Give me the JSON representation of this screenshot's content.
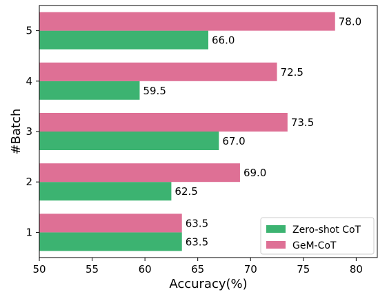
{
  "chart_data": {
    "type": "bar",
    "orientation": "horizontal",
    "categories": [
      "1",
      "2",
      "3",
      "4",
      "5"
    ],
    "series": [
      {
        "name": "Zero-shot CoT",
        "values": [
          63.5,
          62.5,
          67.0,
          59.5,
          66.0
        ],
        "labels": [
          "63.5",
          "62.5",
          "67.0",
          "59.5",
          "66.0"
        ],
        "color": "#3cb371"
      },
      {
        "name": "GeM-CoT",
        "values": [
          63.5,
          69.0,
          73.5,
          72.5,
          78.0
        ],
        "labels": [
          "63.5",
          "69.0",
          "73.5",
          "72.5",
          "78.0"
        ],
        "color": "#de7095"
      }
    ],
    "xlabel": "Accuracy(%)",
    "ylabel": "#Batch",
    "xlim": [
      50,
      82
    ],
    "xticks": [
      50,
      55,
      60,
      65,
      70,
      75,
      80
    ],
    "legend_position": "bottom-right",
    "grid": false
  }
}
